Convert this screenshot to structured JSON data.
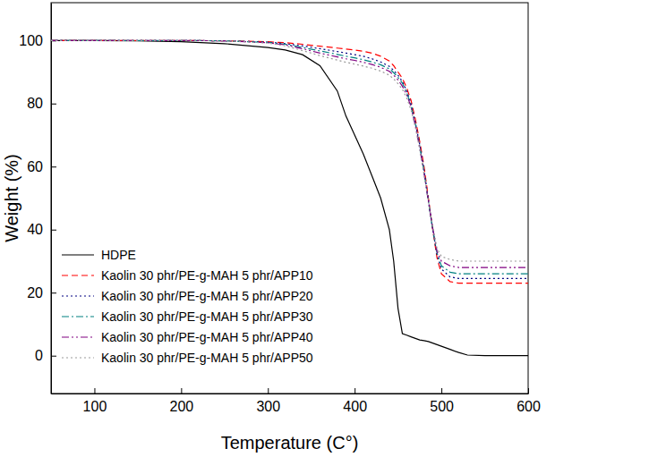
{
  "chart_data": {
    "type": "line",
    "x_label": "Temperature (C°)",
    "y_label": "Weight (%)",
    "xlim": [
      50,
      600
    ],
    "ylim": [
      -12,
      112
    ],
    "xticks": [
      100,
      200,
      300,
      400,
      500,
      600
    ],
    "yticks": [
      0,
      20,
      40,
      60,
      80,
      100
    ],
    "grid": false,
    "legend": "lower left",
    "x": [
      50,
      100,
      150,
      200,
      250,
      300,
      320,
      340,
      360,
      380,
      390,
      400,
      410,
      420,
      430,
      440,
      445,
      450,
      455,
      460,
      465,
      470,
      475,
      480,
      485,
      490,
      495,
      500,
      510,
      520,
      530,
      550,
      600
    ],
    "series": [
      {
        "name": "HDPE",
        "color": "#000000",
        "line_style": "solid",
        "values": [
          100,
          100,
          99.9,
          99.6,
          99,
          97.8,
          97,
          95.5,
          92,
          84,
          76,
          70,
          64,
          57,
          50,
          40,
          30,
          15,
          7,
          6.5,
          6,
          5.5,
          5,
          4.8,
          4.5,
          4,
          3.5,
          3,
          2,
          1,
          0.2,
          0,
          0
        ]
      },
      {
        "name": "Kaolin 30 phr/PE-g-MAH 5 phr/APP10",
        "color": "#ff0000",
        "line_style": "dashed",
        "values": [
          100,
          100,
          100,
          100,
          99.9,
          99.6,
          99.3,
          98.8,
          98.2,
          97.6,
          97.3,
          97,
          96.6,
          96,
          95,
          93.5,
          92,
          90,
          88,
          85,
          81,
          75,
          68,
          60,
          50,
          40,
          31,
          26,
          23.5,
          23,
          23,
          23,
          23
        ]
      },
      {
        "name": "Kaolin 30 phr/PE-g-MAH 5 phr/APP20",
        "color": "#000080",
        "line_style": "dotted",
        "values": [
          100,
          100,
          100,
          100,
          99.9,
          99.5,
          99,
          98.3,
          97.4,
          96.5,
          96,
          95.5,
          95,
          94.2,
          93.2,
          91.8,
          90.5,
          89,
          87,
          84,
          80,
          74,
          67,
          59,
          49.5,
          40,
          32,
          27.5,
          25,
          24.5,
          24.5,
          24.5,
          24.5
        ]
      },
      {
        "name": "Kaolin 30 phr/PE-g-MAH 5 phr/APP30",
        "color": "#008080",
        "line_style": "dashdot",
        "values": [
          100,
          100,
          100,
          100,
          99.9,
          99.4,
          98.8,
          97.8,
          96.7,
          95.6,
          95,
          94.5,
          93.9,
          93.2,
          92.3,
          91,
          89.8,
          88.3,
          86.5,
          83.5,
          79.5,
          73.5,
          66.5,
          58.5,
          49,
          40,
          32.5,
          28.5,
          26.5,
          26,
          26,
          26,
          26
        ]
      },
      {
        "name": "Kaolin 30 phr/PE-g-MAH 5 phr/APP40",
        "color": "#800080",
        "line_style": "dashdotdot",
        "values": [
          100,
          100,
          100,
          100,
          99.9,
          99.3,
          98.6,
          97.4,
          96,
          94.8,
          94.2,
          93.7,
          93.1,
          92.4,
          91.5,
          90.2,
          89,
          87.5,
          85.5,
          82.8,
          79,
          73,
          66,
          58,
          49,
          40.5,
          33,
          30,
          28.5,
          28,
          28,
          28,
          28
        ]
      },
      {
        "name": "Kaolin 30 phr/PE-g-MAH 5 phr/APP50",
        "color": "#999999",
        "line_style": "dotted",
        "values": [
          100,
          100,
          100,
          100,
          99.9,
          99.2,
          98.3,
          96.8,
          95.2,
          93.8,
          93.1,
          92.5,
          91.9,
          91.2,
          90.3,
          89,
          87.8,
          86.3,
          84.5,
          81.8,
          78,
          72.5,
          65.5,
          57.5,
          49,
          41,
          34,
          31.5,
          30.5,
          30,
          30,
          30,
          30
        ]
      }
    ]
  }
}
